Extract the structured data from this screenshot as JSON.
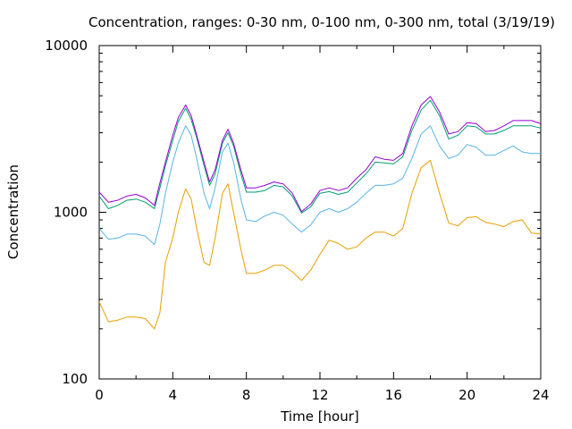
{
  "chart_data": {
    "type": "line",
    "title": "Concentration, ranges: 0-30 nm, 0-100 nm, 0-300 nm, total (3/19/19)",
    "xlabel": "Time [hour]",
    "ylabel": "Concentration",
    "xlim": [
      0,
      24
    ],
    "ylim": [
      100,
      10000
    ],
    "yscale": "log",
    "grid": false,
    "legend": "none",
    "x_ticks": [
      0,
      4,
      8,
      12,
      16,
      20,
      24
    ],
    "x_tick_labels": [
      "0",
      "4",
      "8",
      "12",
      "16",
      "20",
      "24"
    ],
    "y_ticks": [
      100,
      1000,
      10000
    ],
    "y_tick_labels": [
      "100",
      "1000",
      "10000"
    ],
    "x": [
      0,
      0.5,
      1,
      1.5,
      2,
      2.5,
      3,
      3.3,
      3.6,
      4,
      4.3,
      4.7,
      5,
      5.3,
      5.7,
      6,
      6.3,
      6.7,
      7,
      7.3,
      7.7,
      8,
      8.5,
      9,
      9.5,
      10,
      10.5,
      11,
      11.5,
      12,
      12.5,
      13,
      13.5,
      14,
      14.5,
      15,
      15.5,
      16,
      16.5,
      17,
      17.5,
      18,
      18.5,
      19,
      19.5,
      20,
      20.5,
      21,
      21.5,
      22,
      22.5,
      23,
      23.5,
      24
    ],
    "series": [
      {
        "color": "#e69f00",
        "values": [
          290,
          220,
          225,
          235,
          235,
          230,
          200,
          250,
          500,
          700,
          1000,
          1380,
          1200,
          800,
          500,
          480,
          700,
          1300,
          1480,
          1000,
          600,
          430,
          430,
          450,
          480,
          480,
          440,
          390,
          450,
          560,
          680,
          650,
          600,
          620,
          700,
          760,
          760,
          720,
          800,
          1300,
          1850,
          2050,
          1300,
          860,
          830,
          930,
          940,
          870,
          850,
          820,
          880,
          900,
          750,
          740
        ]
      },
      {
        "color": "#56b4e9",
        "values": [
          800,
          690,
          700,
          740,
          740,
          720,
          640,
          850,
          1300,
          2000,
          2600,
          3300,
          2900,
          2100,
          1300,
          1050,
          1400,
          2300,
          2600,
          2000,
          1200,
          900,
          880,
          950,
          1000,
          960,
          850,
          760,
          840,
          1000,
          1050,
          1000,
          1050,
          1150,
          1300,
          1450,
          1450,
          1480,
          1600,
          2100,
          2950,
          3300,
          2500,
          2100,
          2200,
          2550,
          2450,
          2200,
          2200,
          2350,
          2500,
          2300,
          2250,
          2250
        ]
      },
      {
        "color": "#009e73",
        "values": [
          1250,
          1050,
          1100,
          1180,
          1200,
          1150,
          1050,
          1400,
          1900,
          2700,
          3500,
          4200,
          3600,
          2800,
          1900,
          1450,
          1700,
          2600,
          3000,
          2500,
          1700,
          1320,
          1320,
          1350,
          1450,
          1420,
          1250,
          990,
          1080,
          1300,
          1330,
          1280,
          1320,
          1500,
          1700,
          2000,
          1980,
          1950,
          2150,
          3100,
          4100,
          4700,
          3800,
          2750,
          2900,
          3300,
          3250,
          2950,
          2950,
          3100,
          3300,
          3300,
          3300,
          3200
        ]
      },
      {
        "color": "#9400d3",
        "values": [
          1320,
          1150,
          1180,
          1250,
          1280,
          1220,
          1100,
          1500,
          2000,
          2900,
          3700,
          4400,
          3800,
          2900,
          2000,
          1520,
          1800,
          2700,
          3150,
          2600,
          1800,
          1400,
          1400,
          1450,
          1520,
          1480,
          1300,
          1010,
          1120,
          1350,
          1400,
          1350,
          1400,
          1600,
          1800,
          2150,
          2080,
          2050,
          2250,
          3300,
          4400,
          4950,
          4000,
          2950,
          3050,
          3450,
          3400,
          3050,
          3100,
          3300,
          3550,
          3550,
          3550,
          3400
        ]
      }
    ]
  }
}
